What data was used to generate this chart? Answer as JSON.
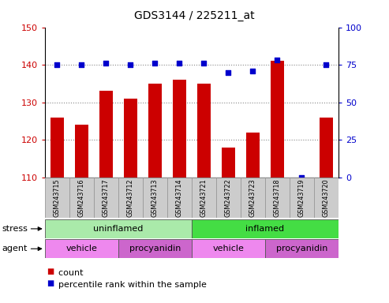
{
  "title": "GDS3144 / 225211_at",
  "samples": [
    "GSM243715",
    "GSM243716",
    "GSM243717",
    "GSM243712",
    "GSM243713",
    "GSM243714",
    "GSM243721",
    "GSM243722",
    "GSM243723",
    "GSM243718",
    "GSM243719",
    "GSM243720"
  ],
  "counts": [
    126,
    124,
    133,
    131,
    135,
    136,
    135,
    118,
    122,
    141,
    110,
    126
  ],
  "percentiles": [
    75,
    75,
    76,
    75,
    76,
    76,
    76,
    70,
    71,
    78,
    0,
    75
  ],
  "bar_color": "#cc0000",
  "dot_color": "#0000cc",
  "ylim_left": [
    110,
    150
  ],
  "ylim_right": [
    0,
    100
  ],
  "yticks_left": [
    110,
    120,
    130,
    140,
    150
  ],
  "yticks_right": [
    0,
    25,
    50,
    75,
    100
  ],
  "stress_labels": [
    {
      "text": "uninflamed",
      "start": 0,
      "end": 6,
      "color": "#aaeaaa"
    },
    {
      "text": "inflamed",
      "start": 6,
      "end": 12,
      "color": "#44dd44"
    }
  ],
  "agent_labels": [
    {
      "text": "vehicle",
      "start": 0,
      "end": 3,
      "color": "#ee88ee"
    },
    {
      "text": "procyanidin",
      "start": 3,
      "end": 6,
      "color": "#cc66cc"
    },
    {
      "text": "vehicle",
      "start": 6,
      "end": 9,
      "color": "#ee88ee"
    },
    {
      "text": "procyanidin",
      "start": 9,
      "end": 12,
      "color": "#cc66cc"
    }
  ],
  "legend_count_color": "#cc0000",
  "legend_dot_color": "#0000cc",
  "grid_color": "#888888",
  "sample_bg_color": "#cccccc",
  "sample_edge_color": "#999999"
}
